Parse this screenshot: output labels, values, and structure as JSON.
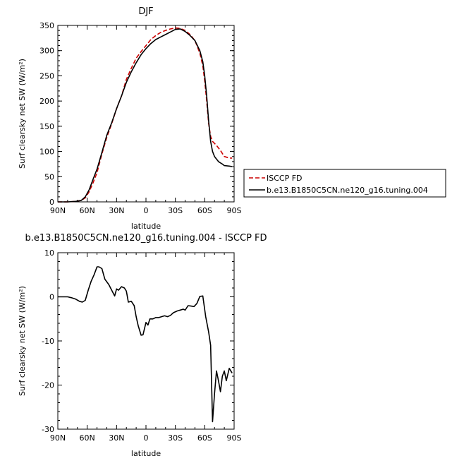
{
  "chart_data": [
    {
      "type": "line",
      "title": "DJF",
      "xlabel": "latitude",
      "ylabel": "Surf clearsky net SW (W/m²)",
      "xlim": [
        90,
        -90
      ],
      "ylim": [
        0,
        350
      ],
      "x_ticks": [
        "90N",
        "60N",
        "30N",
        "0",
        "30S",
        "60S",
        "90S"
      ],
      "x_tick_values": [
        90,
        60,
        30,
        0,
        -30,
        -60,
        -90
      ],
      "y_ticks": [
        "0",
        "50",
        "100",
        "150",
        "200",
        "250",
        "300",
        "350"
      ],
      "y_tick_values": [
        0,
        50,
        100,
        150,
        200,
        250,
        300,
        350
      ],
      "legend": {
        "position": "right"
      },
      "series": [
        {
          "name": "ISCCP FD",
          "color": "#cc0000",
          "dash": "dashed",
          "x": [
            90,
            80,
            72,
            66,
            62,
            58,
            54,
            50,
            45,
            40,
            35,
            30,
            25,
            20,
            15,
            10,
            5,
            0,
            -5,
            -10,
            -15,
            -20,
            -25,
            -30,
            -35,
            -40,
            -45,
            -50,
            -55,
            -58,
            -60,
            -62,
            -64,
            -66,
            -68,
            -72,
            -76,
            -80,
            -85,
            -88
          ],
          "y": [
            0,
            0,
            1,
            3,
            8,
            20,
            38,
            58,
            95,
            128,
            155,
            185,
            210,
            243,
            265,
            285,
            298,
            310,
            322,
            330,
            336,
            340,
            343,
            345,
            344,
            340,
            332,
            320,
            295,
            270,
            240,
            200,
            155,
            130,
            120,
            112,
            102,
            90,
            87,
            87
          ]
        },
        {
          "name": "b.e13.B1850C5CN.ne120_g16.tuning.004",
          "color": "#000000",
          "dash": "solid",
          "x": [
            90,
            80,
            72,
            66,
            62,
            58,
            54,
            50,
            45,
            40,
            35,
            30,
            25,
            20,
            15,
            10,
            5,
            0,
            -5,
            -10,
            -15,
            -20,
            -25,
            -30,
            -35,
            -40,
            -45,
            -50,
            -55,
            -58,
            -60,
            -62,
            -64,
            -66,
            -68,
            -70,
            -74,
            -78,
            -80,
            -85,
            -88
          ],
          "y": [
            0,
            0,
            1,
            3,
            10,
            24,
            45,
            65,
            98,
            132,
            157,
            185,
            210,
            237,
            258,
            276,
            292,
            304,
            314,
            322,
            327,
            332,
            337,
            342,
            343,
            338,
            330,
            320,
            300,
            278,
            250,
            210,
            160,
            120,
            100,
            90,
            80,
            75,
            72,
            71,
            70
          ]
        }
      ]
    },
    {
      "type": "line",
      "title": "b.e13.B1850C5CN.ne120_g16.tuning.004 - ISCCP FD",
      "xlabel": "latitude",
      "ylabel": "Surf clearsky net SW (W/m²)",
      "xlim": [
        90,
        -90
      ],
      "ylim": [
        -30,
        10
      ],
      "x_ticks": [
        "90N",
        "60N",
        "30N",
        "0",
        "30S",
        "60S",
        "90S"
      ],
      "x_tick_values": [
        90,
        60,
        30,
        0,
        -30,
        -60,
        -90
      ],
      "y_ticks": [
        "10",
        "0",
        "-10",
        "-20",
        "-30"
      ],
      "y_tick_values": [
        10,
        0,
        -10,
        -20,
        -30
      ],
      "series": [
        {
          "color": "#000000",
          "dash": "solid",
          "x": [
            90,
            80,
            76,
            72,
            68,
            65,
            62,
            59,
            56,
            53,
            50,
            48,
            45,
            42,
            38,
            35,
            32,
            30,
            28,
            25,
            22,
            20,
            18,
            15,
            12,
            10,
            8,
            5,
            3,
            0,
            -2,
            -4,
            -7,
            -10,
            -13,
            -16,
            -19,
            -22,
            -25,
            -28,
            -32,
            -35,
            -38,
            -40,
            -43,
            -46,
            -49,
            -52,
            -55,
            -58,
            -61,
            -64,
            -66,
            -68,
            -70,
            -72,
            -74,
            -76,
            -78,
            -80,
            -82,
            -85,
            -88
          ],
          "y": [
            0,
            0,
            -0.2,
            -0.5,
            -1.0,
            -1.2,
            -0.8,
            1.5,
            3.5,
            5.0,
            6.8,
            6.8,
            6.4,
            4.0,
            2.8,
            1.5,
            0.2,
            1.8,
            1.5,
            2.3,
            2.0,
            1.3,
            -1.2,
            -1.0,
            -2.0,
            -4.5,
            -6.5,
            -8.7,
            -8.6,
            -5.8,
            -6.4,
            -5.0,
            -5.0,
            -4.7,
            -4.7,
            -4.5,
            -4.3,
            -4.5,
            -4.2,
            -3.6,
            -3.2,
            -3.0,
            -2.8,
            -3.0,
            -2.0,
            -2.1,
            -2.2,
            -1.5,
            0.1,
            0.2,
            -4.5,
            -8.0,
            -11.0,
            -28.3,
            -22.0,
            -16.8,
            -19.0,
            -21.5,
            -18.0,
            -16.8,
            -19.0,
            -16.2,
            -17.3
          ]
        }
      ]
    }
  ]
}
